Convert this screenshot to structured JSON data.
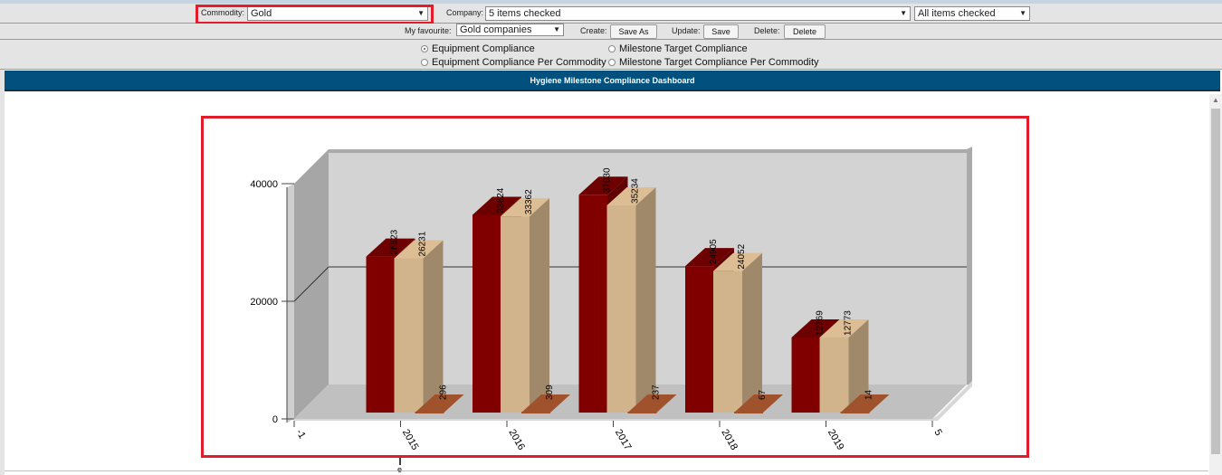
{
  "filters": {
    "commodity_label": "Commodity:",
    "commodity_value": "Gold",
    "company_label": "Company:",
    "company_value": "5 items checked",
    "extra_value": "All items checked"
  },
  "favourites": {
    "label": "My favourite:",
    "value": "Gold companies",
    "create_label": "Create:",
    "save_as_label": "Save As",
    "update_label": "Update:",
    "save_label": "Save",
    "delete_label": "Delete:",
    "delete_button_label": "Delete"
  },
  "views": {
    "options": [
      {
        "label": "Equipment Compliance",
        "selected": true
      },
      {
        "label": "Milestone Target Compliance",
        "selected": false
      },
      {
        "label": "Equipment Compliance Per Commodity",
        "selected": false
      },
      {
        "label": "Milestone Target Compliance Per Commodity",
        "selected": false
      }
    ]
  },
  "banner_title": "Hygiene Milestone Compliance Dashboard",
  "colors": {
    "series1": "#800000",
    "series2": "#d2b48c",
    "series3": "#a0522d",
    "banner": "#01507e",
    "highlight": "#e11d2a"
  },
  "chart_data": {
    "type": "bar",
    "title": "",
    "xlabel": "",
    "ylabel": "",
    "categories": [
      "2015",
      "2016",
      "2017",
      "2018",
      "2019"
    ],
    "edge_ticks": [
      "-1",
      "5"
    ],
    "yticks": [
      "0",
      "20000",
      "40000"
    ],
    "ylim": [
      0,
      40000
    ],
    "grid": true,
    "three_d": true,
    "series": [
      {
        "values": [
          26523,
          33624,
          37030,
          24905,
          12769
        ],
        "labels": [
          "26523",
          "33624",
          "37030",
          "24905",
          "12769"
        ]
      },
      {
        "values": [
          26231,
          33362,
          35234,
          24052,
          12773
        ],
        "labels": [
          "26231",
          "33362",
          "35234",
          "24052",
          "12773"
        ]
      },
      {
        "values": [
          296,
          309,
          237,
          67,
          14
        ],
        "labels": [
          "296",
          "309",
          "237",
          "67",
          "14"
        ]
      }
    ],
    "below_axis_label": "e"
  }
}
